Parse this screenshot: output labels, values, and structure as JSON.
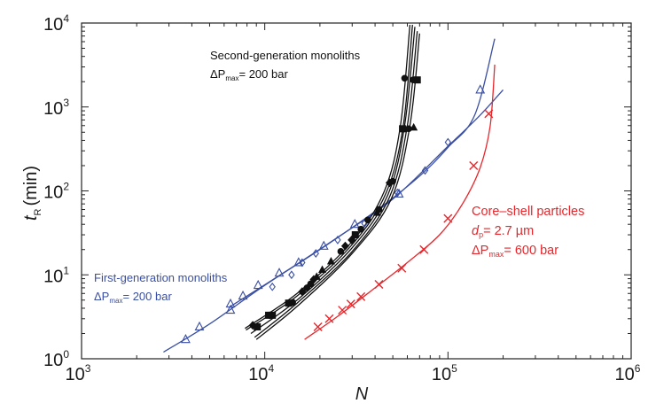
{
  "chart_data": {
    "type": "scatter",
    "title": "",
    "xlabel": "N",
    "ylabel": "t",
    "ylabel_sub": "R",
    "ylabel_unit": "(min)",
    "x_scale": "log",
    "y_scale": "log",
    "xlim": [
      1000,
      1000000
    ],
    "ylim": [
      1,
      10000
    ],
    "x_ticks": [
      {
        "base": "10",
        "exp": "3"
      },
      {
        "base": "10",
        "exp": "4"
      },
      {
        "base": "10",
        "exp": "5"
      },
      {
        "base": "10",
        "exp": "6"
      }
    ],
    "y_ticks": [
      {
        "base": "10",
        "exp": "0"
      },
      {
        "base": "10",
        "exp": "1"
      },
      {
        "base": "10",
        "exp": "2"
      },
      {
        "base": "10",
        "exp": "3"
      },
      {
        "base": "10",
        "exp": "4"
      }
    ],
    "grid": false,
    "colors": {
      "first_generation": "#3a4fa3",
      "second_generation": "#111111",
      "core_shell": "#e8262b",
      "axis": "#222222"
    },
    "series": [
      {
        "name": "First-generation monoliths",
        "marker": "open-triangle",
        "color": "#3a4fa3",
        "points": [
          {
            "x": 3700,
            "y": 1.7
          },
          {
            "x": 4400,
            "y": 2.4
          },
          {
            "x": 6500,
            "y": 3.8
          },
          {
            "x": 6500,
            "y": 4.5
          },
          {
            "x": 7600,
            "y": 5.6
          },
          {
            "x": 9200,
            "y": 7.5
          },
          {
            "x": 12000,
            "y": 10.5
          },
          {
            "x": 15300,
            "y": 14
          },
          {
            "x": 21000,
            "y": 22
          },
          {
            "x": 31000,
            "y": 40
          },
          {
            "x": 54000,
            "y": 92
          },
          {
            "x": 150000,
            "y": 1600
          }
        ],
        "curves": [
          {
            "x": [
              2800,
              5000,
              10000,
              20000,
              40000,
              70000,
              100000,
              140000,
              180000
            ],
            "y": [
              1.2,
              2.6,
              7.5,
              20,
              57,
              150,
              330,
              800,
              6500
            ]
          },
          {
            "x": [
              6500,
              12000,
              25000,
              50000,
              100000,
              150000,
              200000
            ],
            "y": [
              4.2,
              9.8,
              28,
              80,
              340,
              800,
              1600
            ]
          }
        ]
      },
      {
        "name": "First-generation monoliths (open diamond)",
        "marker": "open-diamond",
        "color": "#3a4fa3",
        "points": [
          {
            "x": 11000,
            "y": 7.2
          },
          {
            "x": 14000,
            "y": 10
          },
          {
            "x": 16000,
            "y": 14
          },
          {
            "x": 19000,
            "y": 18
          },
          {
            "x": 25000,
            "y": 26
          },
          {
            "x": 35000,
            "y": 41
          },
          {
            "x": 53000,
            "y": 95
          },
          {
            "x": 75000,
            "y": 175
          },
          {
            "x": 100000,
            "y": 380
          }
        ]
      },
      {
        "name": "Second-generation monoliths",
        "marker": "filled",
        "color": "#111111",
        "points": [
          {
            "x": 8600,
            "y": 2.5,
            "m": "diamond"
          },
          {
            "x": 9100,
            "y": 2.4,
            "m": "square"
          },
          {
            "x": 10500,
            "y": 3.3,
            "m": "square"
          },
          {
            "x": 11000,
            "y": 3.3,
            "m": "square"
          },
          {
            "x": 13500,
            "y": 4.6,
            "m": "square"
          },
          {
            "x": 14200,
            "y": 4.7,
            "m": "circle"
          },
          {
            "x": 16000,
            "y": 6.3,
            "m": "diamond"
          },
          {
            "x": 17000,
            "y": 7.0,
            "m": "circle"
          },
          {
            "x": 17800,
            "y": 7.8,
            "m": "circle"
          },
          {
            "x": 18500,
            "y": 8.8,
            "m": "diamond"
          },
          {
            "x": 19200,
            "y": 9.5,
            "m": "triangle"
          },
          {
            "x": 20600,
            "y": 11.5,
            "m": "triangle"
          },
          {
            "x": 23000,
            "y": 14.5,
            "m": "triangle"
          },
          {
            "x": 26000,
            "y": 19,
            "m": "circle"
          },
          {
            "x": 27500,
            "y": 22,
            "m": "diamond"
          },
          {
            "x": 29800,
            "y": 26,
            "m": "diamond"
          },
          {
            "x": 31200,
            "y": 30,
            "m": "square"
          },
          {
            "x": 33500,
            "y": 35,
            "m": "circle"
          },
          {
            "x": 36500,
            "y": 45,
            "m": "circle"
          },
          {
            "x": 41000,
            "y": 55,
            "m": "triangle"
          },
          {
            "x": 42000,
            "y": 60,
            "m": "circle"
          },
          {
            "x": 48000,
            "y": 125,
            "m": "diamond"
          },
          {
            "x": 50000,
            "y": 130,
            "m": "circle"
          },
          {
            "x": 56500,
            "y": 550,
            "m": "square"
          },
          {
            "x": 61000,
            "y": 550,
            "m": "circle"
          },
          {
            "x": 65000,
            "y": 570,
            "m": "triangle"
          },
          {
            "x": 58000,
            "y": 2200,
            "m": "circle"
          },
          {
            "x": 64500,
            "y": 2100,
            "m": "circle"
          },
          {
            "x": 68000,
            "y": 2100,
            "m": "square"
          }
        ],
        "curves": [
          {
            "x": [
              7800,
              15000,
              30000,
              45000,
              55000,
              62000
            ],
            "y": [
              2.3,
              6,
              25,
              100,
              600,
              9500
            ]
          },
          {
            "x": [
              7900,
              15000,
              30000,
              46000,
              57000,
              64000
            ],
            "y": [
              2.2,
              5.6,
              23,
              95,
              600,
              9500
            ]
          },
          {
            "x": [
              8400,
              15000,
              30000,
              47000,
              58000,
              66000
            ],
            "y": [
              2.0,
              5.0,
              21,
              90,
              600,
              9000
            ]
          },
          {
            "x": [
              8800,
              15000,
              30000,
              48000,
              60000,
              68000
            ],
            "y": [
              1.8,
              4.6,
              19,
              85,
              600,
              8000
            ]
          },
          {
            "x": [
              9000,
              15000,
              30000,
              49000,
              62000,
              70000
            ],
            "y": [
              1.7,
              4.2,
              18,
              80,
              600,
              7500
            ]
          }
        ]
      },
      {
        "name": "Core–shell particles",
        "marker": "cross",
        "color": "#e8262b",
        "points": [
          {
            "x": 19500,
            "y": 2.4
          },
          {
            "x": 22500,
            "y": 3.0
          },
          {
            "x": 26500,
            "y": 3.8
          },
          {
            "x": 29500,
            "y": 4.5
          },
          {
            "x": 33500,
            "y": 5.5
          },
          {
            "x": 42000,
            "y": 7.7
          },
          {
            "x": 56000,
            "y": 12
          },
          {
            "x": 74000,
            "y": 20
          },
          {
            "x": 100000,
            "y": 47
          },
          {
            "x": 138000,
            "y": 200
          },
          {
            "x": 167000,
            "y": 830
          }
        ],
        "curves": [
          {
            "x": [
              16500,
              25000,
              40000,
              60000,
              90000,
              120000,
              150000,
              170000,
              180000
            ],
            "y": [
              1.7,
              3.2,
              7.0,
              14,
              30,
              70,
              190,
              600,
              3200
            ]
          }
        ]
      }
    ],
    "annotations": {
      "second_generation": {
        "title": "Second-generation monoliths",
        "dp": "ΔP",
        "sub": "max",
        "value": "= 200 bar"
      },
      "first_generation": {
        "title": "First-generation monoliths",
        "dp": "ΔP",
        "sub": "max",
        "value": "= 200 bar"
      },
      "core_shell": {
        "title": "Core–shell particles",
        "d": "d",
        "d_sub": "p",
        "d_value": "= 2.7 µm",
        "dp": "ΔP",
        "sub": "max",
        "value": "= 600 bar"
      }
    }
  }
}
